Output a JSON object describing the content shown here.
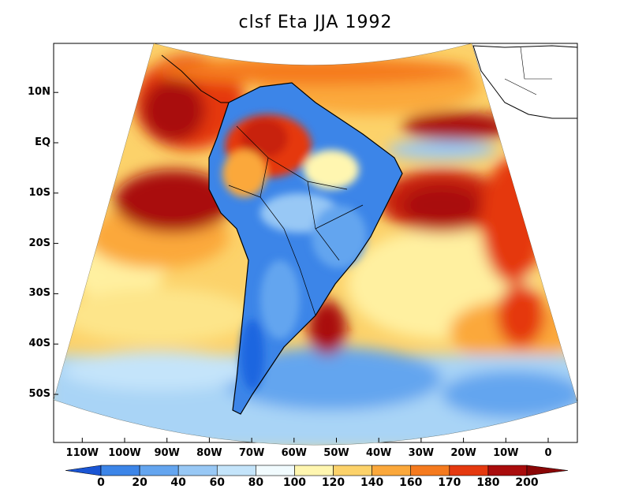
{
  "title": "clsf Eta JJA 1992",
  "lat_labels": [
    "10N",
    "EQ",
    "10S",
    "20S",
    "30S",
    "40S",
    "50S"
  ],
  "lat_values": [
    10,
    0,
    -10,
    -20,
    -30,
    -40,
    -50
  ],
  "lon_labels": [
    "110W",
    "100W",
    "90W",
    "80W",
    "70W",
    "60W",
    "50W",
    "40W",
    "30W",
    "20W",
    "10W",
    "0"
  ],
  "lon_values": [
    -110,
    -100,
    -90,
    -80,
    -70,
    -60,
    -50,
    -40,
    -30,
    -20,
    -10,
    0
  ],
  "colorbar": {
    "labels": [
      "0",
      "20",
      "40",
      "60",
      "80",
      "100",
      "120",
      "140",
      "160",
      "170",
      "180",
      "200"
    ],
    "colors": [
      "#1f66e0",
      "#3c85e8",
      "#64a5ef",
      "#98c8f5",
      "#c4e4fa",
      "#f1fbfe",
      "#fff6b0",
      "#fcd26a",
      "#fba83b",
      "#f57a1e",
      "#e5390f",
      "#a90c0c"
    ],
    "under_color": "#1a55d4",
    "over_color": "#8a0606"
  },
  "colors": {
    "land_outline": "#000000",
    "background": "#ffffff"
  }
}
